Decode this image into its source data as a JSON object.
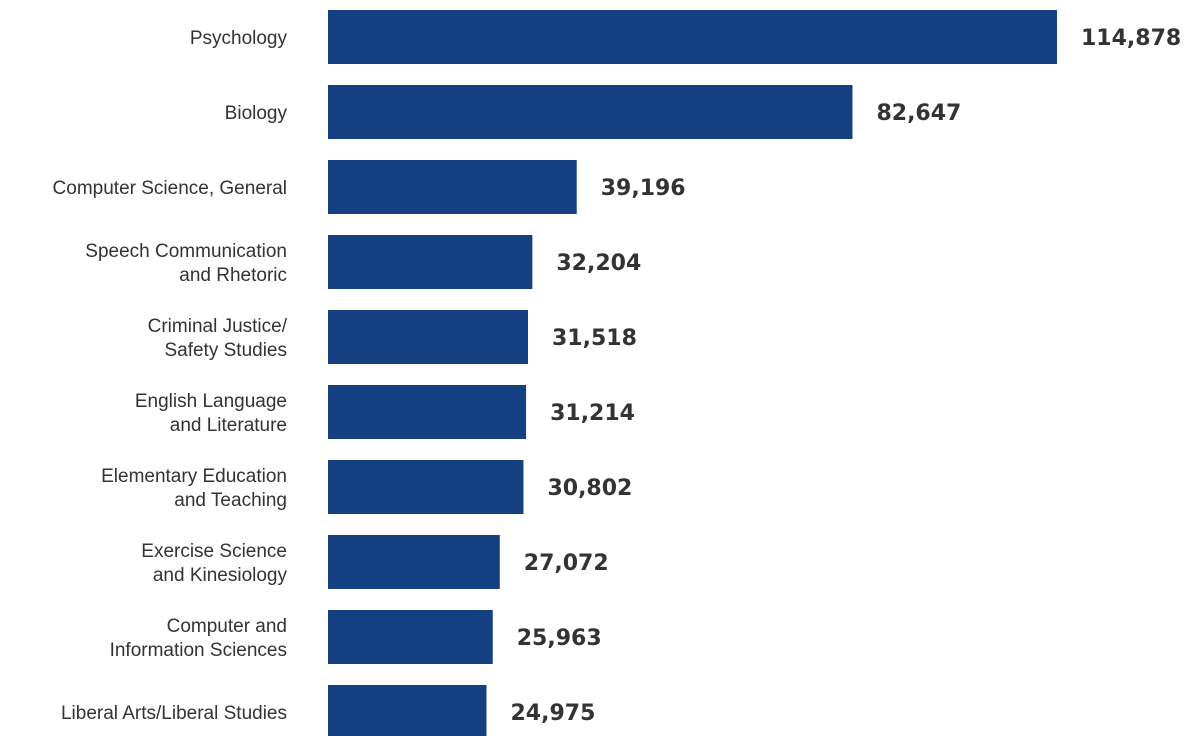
{
  "chart_data": {
    "type": "bar",
    "orientation": "horizontal",
    "title": "",
    "xlabel": "",
    "ylabel": "",
    "categories": [
      [
        "Psychology"
      ],
      [
        "Biology"
      ],
      [
        "Computer Science, General"
      ],
      [
        "Speech Communication",
        "and Rhetoric"
      ],
      [
        "Criminal Justice/",
        "Safety Studies"
      ],
      [
        "English Language",
        "and Literature"
      ],
      [
        "Elementary Education",
        "and Teaching"
      ],
      [
        "Exercise Science",
        "and Kinesiology"
      ],
      [
        "Computer and",
        "Information Sciences"
      ],
      [
        "Liberal Arts/Liberal Studies"
      ]
    ],
    "values": [
      114878,
      82647,
      39196,
      32204,
      31518,
      31214,
      30802,
      27072,
      25963,
      24975
    ],
    "value_labels": [
      "114,878",
      "82,647",
      "39,196",
      "32,204",
      "31,518",
      "31,214",
      "30,802",
      "27,072",
      "25,963",
      "24,975"
    ],
    "xlim": [
      0,
      114878
    ],
    "grid": false,
    "legend": "none",
    "bar_color": "#143f80",
    "text_color": "#333333"
  }
}
